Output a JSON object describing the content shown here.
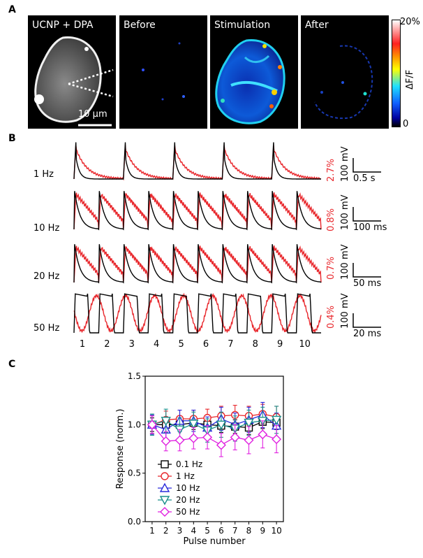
{
  "panel_labels": {
    "a": "A",
    "b": "B",
    "c": "C"
  },
  "panel_a": {
    "images": [
      {
        "title": "UCNP + DPA"
      },
      {
        "title": "Before"
      },
      {
        "title": "Stimulation"
      },
      {
        "title": "After"
      }
    ],
    "scale_bar": "10 μm",
    "colorbar": {
      "max_label": "20%",
      "min_label": "0",
      "axis_label": "ΔF/F"
    }
  },
  "panel_b": {
    "rows": [
      {
        "rate": "1 Hz",
        "percent": "2.7%",
        "v_scale": "100 mV",
        "t_scale": "0.5 s",
        "n_spikes": 5
      },
      {
        "rate": "10 Hz",
        "percent": "0.8%",
        "v_scale": "100 mV",
        "t_scale": "100 ms",
        "n_spikes": 10
      },
      {
        "rate": "20 Hz",
        "percent": "0.7%",
        "v_scale": "100 mV",
        "t_scale": "50 ms",
        "n_spikes": 10
      },
      {
        "rate": "50 Hz",
        "percent": "0.4%",
        "v_scale": "100 mV",
        "t_scale": "20 ms",
        "n_spikes": 10
      }
    ],
    "pulse_numbers": [
      "1",
      "2",
      "3",
      "4",
      "5",
      "6",
      "7",
      "8",
      "9",
      "10"
    ],
    "colors": {
      "voltage": "#000000",
      "fluorescence": "#e8262b"
    }
  },
  "chart_data": {
    "type": "line",
    "xlabel": "Pulse number",
    "ylabel": "Response (norm.)",
    "x": [
      1,
      2,
      3,
      4,
      5,
      6,
      7,
      8,
      9,
      10
    ],
    "xlim": [
      0.5,
      10.5
    ],
    "ylim": [
      0.0,
      1.5
    ],
    "yticks": [
      "0.0",
      "0.5",
      "1.0",
      "1.5"
    ],
    "legend_position": "lower-left",
    "series": [
      {
        "name": "0.1 Hz",
        "color": "#000000",
        "marker": "square",
        "values": [
          1.0,
          1.0,
          1.0,
          1.02,
          1.0,
          0.99,
          0.98,
          0.97,
          1.03,
          1.02
        ],
        "errors": [
          0.07,
          0.07,
          0.07,
          0.07,
          0.07,
          0.07,
          0.07,
          0.07,
          0.07,
          0.07
        ]
      },
      {
        "name": "1 Hz",
        "color": "#e8262b",
        "marker": "circle",
        "values": [
          1.0,
          1.05,
          1.06,
          1.06,
          1.07,
          1.09,
          1.1,
          1.09,
          1.11,
          1.08
        ],
        "errors": [
          0.09,
          0.09,
          0.09,
          0.09,
          0.09,
          0.1,
          0.1,
          0.1,
          0.1,
          0.11
        ]
      },
      {
        "name": "10 Hz",
        "color": "#2b2bdc",
        "marker": "triangle-up",
        "values": [
          1.0,
          0.95,
          1.04,
          1.04,
          0.97,
          1.06,
          1.0,
          1.05,
          1.1,
          0.99
        ],
        "errors": [
          0.1,
          0.1,
          0.11,
          0.11,
          0.11,
          0.12,
          0.12,
          0.13,
          0.13,
          0.13
        ]
      },
      {
        "name": "20 Hz",
        "color": "#1a8f8a",
        "marker": "triangle-down",
        "values": [
          1.0,
          1.04,
          0.95,
          1.01,
          0.94,
          1.0,
          0.96,
          1.02,
          1.04,
          1.05
        ],
        "errors": [
          0.11,
          0.12,
          0.12,
          0.12,
          0.12,
          0.13,
          0.13,
          0.13,
          0.14,
          0.14
        ]
      },
      {
        "name": "50 Hz",
        "color": "#e020e0",
        "marker": "diamond",
        "values": [
          1.0,
          0.83,
          0.84,
          0.86,
          0.87,
          0.79,
          0.87,
          0.84,
          0.9,
          0.85
        ],
        "errors": [
          0.09,
          0.1,
          0.11,
          0.11,
          0.12,
          0.12,
          0.13,
          0.14,
          0.14,
          0.14
        ]
      }
    ]
  }
}
